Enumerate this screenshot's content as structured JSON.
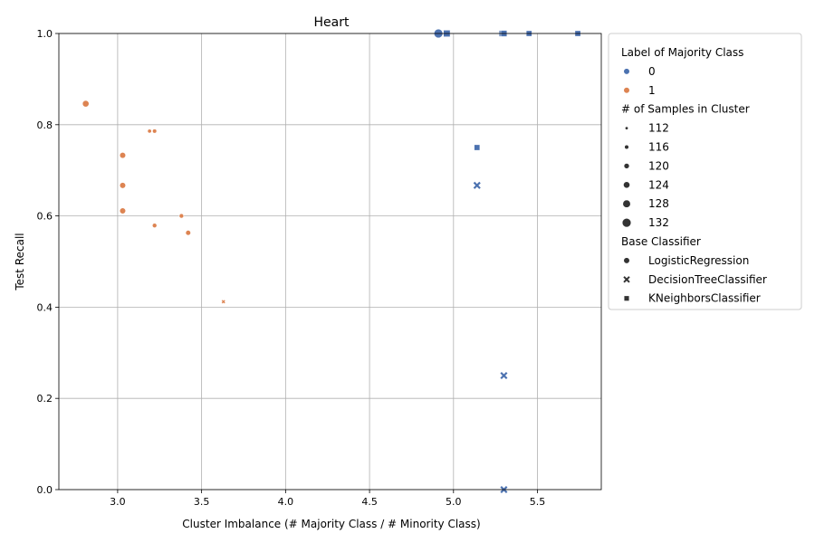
{
  "chart_data": {
    "type": "scatter",
    "title": "Heart",
    "xlabel": "Cluster Imbalance (# Majority Class / # Minority Class)",
    "ylabel": "Test Recall",
    "xlim": [
      2.65,
      5.88
    ],
    "ylim": [
      0,
      1
    ],
    "x_ticks": [
      "3.0",
      "3.5",
      "4.0",
      "4.5",
      "5.0",
      "5.5"
    ],
    "y_ticks": [
      "0.0",
      "0.2",
      "0.4",
      "0.6",
      "0.8",
      "1.0"
    ],
    "grid": true,
    "legend_position": "outside-right",
    "colors": {
      "0": "#4c72b0",
      "1": "#dd8452"
    },
    "legend": {
      "hue_title": "Label of Majority Class",
      "hue_entries": [
        {
          "label": "0",
          "class": "0"
        },
        {
          "label": "1",
          "class": "1"
        }
      ],
      "size_title": "# of Samples in Cluster",
      "size_entries": [
        {
          "label": "112",
          "size": 112
        },
        {
          "label": "116",
          "size": 116
        },
        {
          "label": "120",
          "size": 120
        },
        {
          "label": "124",
          "size": 124
        },
        {
          "label": "128",
          "size": 128
        },
        {
          "label": "132",
          "size": 132
        }
      ],
      "style_title": "Base Classifier",
      "style_entries": [
        {
          "label": "LogisticRegression",
          "marker": "circle"
        },
        {
          "label": "DecisionTreeClassifier",
          "marker": "x"
        },
        {
          "label": "KNeighborsClassifier",
          "marker": "square"
        }
      ]
    },
    "points": [
      {
        "x": 2.81,
        "y": 0.846,
        "class": "1",
        "marker": "circle",
        "size": 124
      },
      {
        "x": 3.03,
        "y": 0.733,
        "class": "1",
        "marker": "circle",
        "size": 122
      },
      {
        "x": 3.03,
        "y": 0.667,
        "class": "1",
        "marker": "circle",
        "size": 122
      },
      {
        "x": 3.03,
        "y": 0.611,
        "class": "1",
        "marker": "circle",
        "size": 122
      },
      {
        "x": 3.19,
        "y": 0.786,
        "class": "1",
        "marker": "circle",
        "size": 115
      },
      {
        "x": 3.22,
        "y": 0.786,
        "class": "1",
        "marker": "circle",
        "size": 116
      },
      {
        "x": 3.22,
        "y": 0.579,
        "class": "1",
        "marker": "circle",
        "size": 117
      },
      {
        "x": 3.38,
        "y": 0.6,
        "class": "1",
        "marker": "circle",
        "size": 117
      },
      {
        "x": 3.42,
        "y": 0.563,
        "class": "1",
        "marker": "circle",
        "size": 119
      },
      {
        "x": 3.63,
        "y": 0.412,
        "class": "1",
        "marker": "x",
        "size": 112
      },
      {
        "x": 4.91,
        "y": 1.0,
        "class": "0",
        "marker": "circle",
        "size": 132
      },
      {
        "x": 4.96,
        "y": 1.0,
        "class": "0",
        "marker": "square",
        "size": 128
      },
      {
        "x": 5.14,
        "y": 0.75,
        "class": "0",
        "marker": "square",
        "size": 124
      },
      {
        "x": 5.14,
        "y": 0.667,
        "class": "0",
        "marker": "x",
        "size": 124
      },
      {
        "x": 5.29,
        "y": 1.0,
        "class": "0",
        "marker": "square",
        "size": 126
      },
      {
        "x": 5.3,
        "y": 1.0,
        "class": "0",
        "marker": "square",
        "size": 126
      },
      {
        "x": 5.3,
        "y": 0.25,
        "class": "0",
        "marker": "x",
        "size": 124
      },
      {
        "x": 5.3,
        "y": 0.0,
        "class": "0",
        "marker": "x",
        "size": 124
      },
      {
        "x": 5.45,
        "y": 1.0,
        "class": "0",
        "marker": "square",
        "size": 124
      },
      {
        "x": 5.74,
        "y": 1.0,
        "class": "0",
        "marker": "square",
        "size": 124
      }
    ]
  }
}
